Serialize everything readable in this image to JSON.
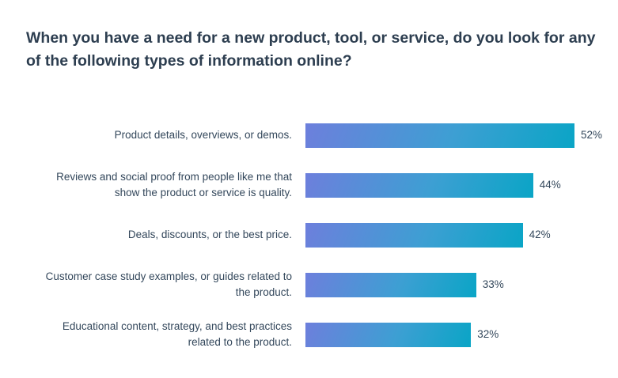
{
  "title": "When you have a need for a new product, tool, or service, do you look for any of the following types of information online?",
  "chart_data": {
    "type": "bar",
    "orientation": "horizontal",
    "categories": [
      "Product details, overviews, or demos.",
      "Reviews and social proof from people like me that show the product or service is quality.",
      "Deals, discounts, or the best price.",
      "Customer case study examples, or guides related to the product.",
      "Educational content, strategy, and best practices related to the product."
    ],
    "category_lines": [
      [
        "Product details, overviews, or demos."
      ],
      [
        "Reviews and social proof from people like me that",
        "show the product or service is quality."
      ],
      [
        "Deals, discounts, or the best price."
      ],
      [
        "Customer case study examples, or guides related to",
        "the product."
      ],
      [
        "Educational content, strategy, and best practices",
        "related to the product."
      ]
    ],
    "values": [
      52,
      44,
      42,
      33,
      32
    ],
    "value_labels": [
      "52%",
      "44%",
      "42%",
      "33%",
      "32%"
    ],
    "unit": "%",
    "xlim": [
      0,
      52
    ],
    "grid": false,
    "legend": "none"
  }
}
